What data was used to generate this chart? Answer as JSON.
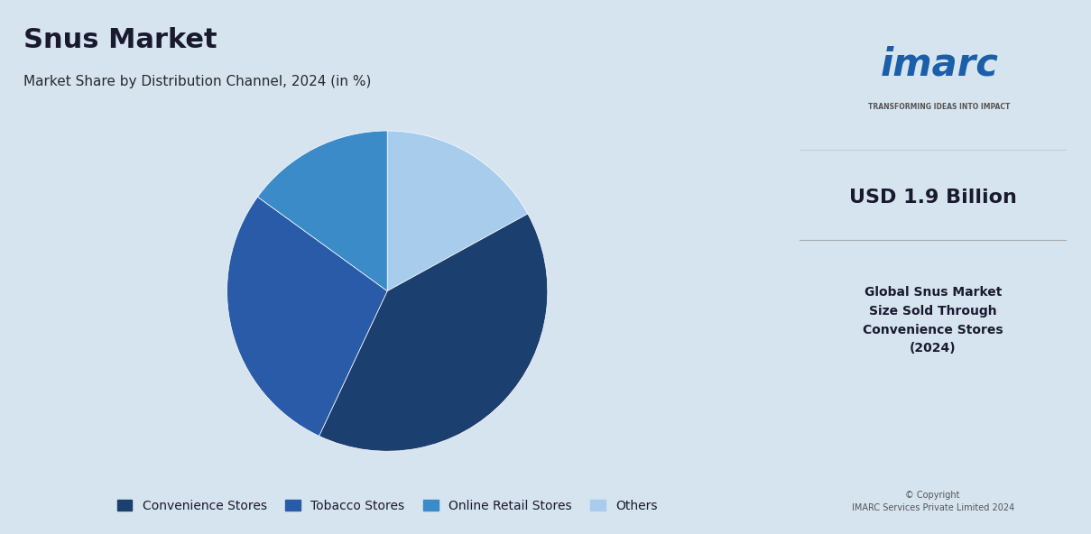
{
  "title": "Snus Market",
  "subtitle": "Market Share by Distribution Channel, 2024 (in %)",
  "slices": [
    {
      "label": "Convenience Stores",
      "value": 40,
      "color": "#1b3f6e"
    },
    {
      "label": "Tobacco Stores",
      "value": 28,
      "color": "#2a5ba8"
    },
    {
      "label": "Online Retail Stores",
      "value": 15,
      "color": "#3b8bc8"
    },
    {
      "label": "Others",
      "value": 17,
      "color": "#a8ccec"
    }
  ],
  "startangle": 90,
  "bg_color": "#d6e4f0",
  "right_panel_color": "#e8eef5",
  "title_fontsize": 22,
  "subtitle_fontsize": 11,
  "legend_fontsize": 10,
  "right_text_value": "USD 1.9 Billion",
  "right_text_label": "Global Snus Market\nSize Sold Through\nConvenience Stores\n(2024)",
  "copyright": "© Copyright\nIMARC Services Private Limited 2024"
}
